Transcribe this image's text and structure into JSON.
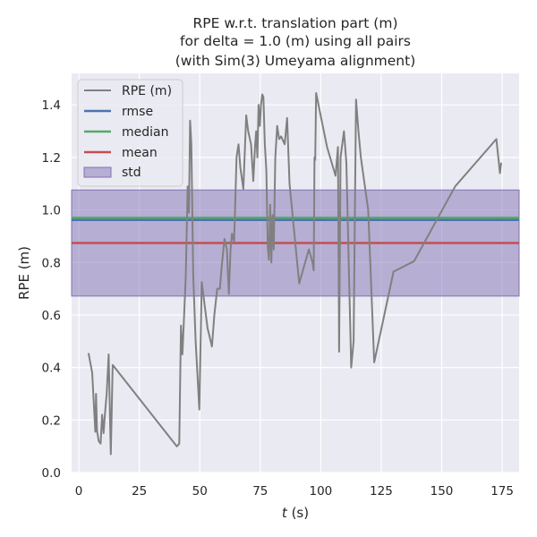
{
  "chart_data": {
    "type": "line",
    "title_lines": [
      "RPE w.r.t. translation part (m)",
      "for delta = 1.0 (m) using all pairs",
      "(with Sim(3) Umeyama alignment)"
    ],
    "xlabel_var": "t",
    "xlabel_unit": " (s)",
    "ylabel": "RPE (m)",
    "xlim": [
      -3,
      182
    ],
    "ylim": [
      0,
      1.52
    ],
    "xticks": [
      0,
      25,
      50,
      75,
      100,
      125,
      150,
      175
    ],
    "yticks": [
      0.0,
      0.2,
      0.4,
      0.6,
      0.8,
      1.0,
      1.2,
      1.4
    ],
    "grid": true,
    "legend_position": "top-left",
    "colors": {
      "background": "#eaeaf2",
      "grid": "#ffffff",
      "rpe": "#808080",
      "rmse": "#4c72b0",
      "median": "#55a868",
      "mean": "#c44e52",
      "std": "#8172b3"
    },
    "legend": [
      "RPE (m)",
      "rmse",
      "median",
      "mean",
      "std"
    ],
    "stats": {
      "rmse": 0.962,
      "median": 0.97,
      "mean": 0.874,
      "std_low": 0.672,
      "std_high": 1.076
    },
    "series": [
      {
        "name": "RPE (m)",
        "x": [
          4.0,
          5.5,
          6.8,
          7.1,
          7.5,
          8.2,
          9.0,
          9.6,
          10.2,
          10.8,
          11.5,
          12.3,
          13.2,
          14.0,
          40.5,
          41.5,
          42.2,
          42.8,
          43.3,
          44.2,
          45.0,
          45.5,
          46.0,
          46.5,
          47.3,
          48.3,
          49.8,
          50.8,
          53.2,
          55.0,
          56.0,
          57.2,
          58.3,
          59.0,
          60.2,
          61.2,
          62.0,
          62.7,
          63.3,
          64.2,
          65.2,
          66.0,
          66.8,
          68.0,
          69.2,
          70.0,
          71.2,
          72.1,
          72.8,
          73.3,
          73.8,
          74.3,
          74.8,
          75.3,
          75.8,
          76.3,
          76.9,
          77.5,
          78.1,
          78.6,
          79.1,
          79.6,
          80.1,
          80.6,
          81.2,
          82.0,
          82.8,
          83.6,
          85.1,
          86.1,
          87.1,
          91.1,
          95.1,
          96.6,
          97.1,
          97.4,
          97.7,
          98.1,
          102.6,
          106.1,
          107.1,
          107.6,
          108.2,
          109.6,
          110.6,
          112.6,
          113.6,
          114.6,
          115.6,
          116.6,
          119.6,
          122.1,
          130.1,
          138.6,
          155.6,
          172.6,
          174.1,
          174.6
        ],
        "y": [
          0.455,
          0.38,
          0.155,
          0.3,
          0.16,
          0.12,
          0.11,
          0.22,
          0.15,
          0.225,
          0.3,
          0.45,
          0.07,
          0.41,
          0.1,
          0.11,
          0.56,
          0.45,
          0.55,
          0.75,
          1.09,
          0.99,
          1.34,
          1.25,
          0.75,
          0.5,
          0.24,
          0.725,
          0.55,
          0.48,
          0.6,
          0.7,
          0.7,
          0.78,
          0.89,
          0.85,
          0.68,
          0.85,
          0.91,
          0.88,
          1.2,
          1.25,
          1.16,
          1.08,
          1.36,
          1.3,
          1.25,
          1.11,
          1.24,
          1.3,
          1.2,
          1.4,
          1.32,
          1.4,
          1.44,
          1.43,
          1.25,
          1.15,
          0.86,
          0.81,
          1.02,
          0.8,
          0.98,
          0.85,
          1.2,
          1.32,
          1.27,
          1.28,
          1.25,
          1.35,
          1.1,
          0.72,
          0.85,
          0.8,
          0.77,
          1.2,
          1.19,
          1.445,
          1.24,
          1.13,
          1.24,
          0.46,
          1.2,
          1.3,
          1.18,
          0.4,
          0.5,
          1.42,
          1.3,
          1.2,
          1.0,
          0.42,
          0.765,
          0.805,
          1.09,
          1.27,
          1.14,
          1.18
        ]
      }
    ]
  }
}
